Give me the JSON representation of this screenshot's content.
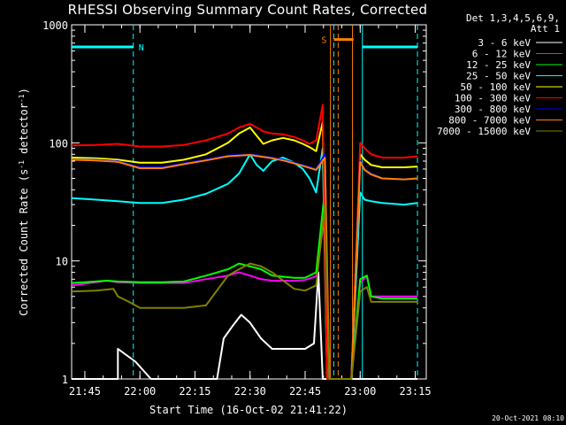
{
  "chart_data": {
    "type": "line",
    "title": "RHESSI Observing Summary Count Rates, Corrected",
    "xlabel": "Start Time (16-Oct-02 21:41:22)",
    "ylabel": "Corrected Count Rate (s",
    "ylabel_sup1": "-1",
    "ylabel_mid": " detector",
    "ylabel_sup2": "-1",
    "ylabel_end": ")",
    "yscale": "log",
    "ylim": [
      1,
      1000
    ],
    "y_ticks": [
      {
        "v": 1,
        "label": "1"
      },
      {
        "v": 10,
        "label": "10"
      },
      {
        "v": 100,
        "label": "100"
      },
      {
        "v": 1000,
        "label": "1000"
      }
    ],
    "xlim": [
      21.69,
      23.3
    ],
    "x_ticks": [
      {
        "v": 21.75,
        "label": "21:45"
      },
      {
        "v": 22.0,
        "label": "22:00"
      },
      {
        "v": 22.25,
        "label": "22:15"
      },
      {
        "v": 22.5,
        "label": "22:30"
      },
      {
        "v": 22.75,
        "label": "22:45"
      },
      {
        "v": 23.0,
        "label": "23:00"
      },
      {
        "v": 23.25,
        "label": "23:15"
      }
    ],
    "legend_header": [
      "Det 1,3,4,5,6,9,",
      "Att 1"
    ],
    "legend_position": "right",
    "series": [
      {
        "name": "3 - 6 keV",
        "color": "#ffffff",
        "x": [
          21.69,
          21.9,
          21.9,
          21.98,
          22.05,
          22.2,
          22.35,
          22.38,
          22.42,
          22.46,
          22.5,
          22.55,
          22.6,
          22.65,
          22.7,
          22.75,
          22.79,
          22.81,
          22.83,
          22.86,
          22.9,
          22.96,
          23.0,
          23.05,
          23.1,
          23.2,
          23.26
        ],
        "y": [
          1,
          1,
          1.8,
          1.4,
          1,
          1,
          1,
          2.2,
          2.8,
          3.5,
          3,
          2.2,
          1.8,
          1.8,
          1.8,
          1.8,
          2,
          8,
          1,
          1,
          1,
          1,
          1,
          1,
          1,
          1,
          1
        ]
      },
      {
        "name": "6 - 12 keV",
        "color": "#ff00ff",
        "x": [
          21.69,
          21.75,
          21.85,
          21.9,
          22.0,
          22.1,
          22.2,
          22.3,
          22.4,
          22.45,
          22.5,
          22.55,
          22.6,
          22.7,
          22.75,
          22.8,
          22.84,
          22.86,
          22.9,
          22.96,
          23.0,
          23.03,
          23.05,
          23.1,
          23.2,
          23.26
        ],
        "y": [
          6.2,
          6.4,
          6.8,
          6.6,
          6.5,
          6.5,
          6.5,
          7,
          7.5,
          8,
          7.5,
          7,
          6.8,
          6.8,
          6.9,
          7.4,
          25,
          1,
          1,
          1,
          6.5,
          7.5,
          5,
          5,
          5,
          5
        ]
      },
      {
        "name": "12 - 25 keV",
        "color": "#00ff00",
        "x": [
          21.69,
          21.75,
          21.85,
          21.9,
          22.0,
          22.1,
          22.2,
          22.3,
          22.4,
          22.45,
          22.5,
          22.55,
          22.6,
          22.7,
          22.75,
          22.8,
          22.84,
          22.86,
          22.9,
          22.96,
          23.0,
          23.03,
          23.05,
          23.1,
          23.2,
          23.26
        ],
        "y": [
          6.5,
          6.6,
          6.8,
          6.7,
          6.6,
          6.6,
          6.7,
          7.5,
          8.5,
          9.5,
          9,
          8.5,
          7.5,
          7.2,
          7.2,
          8,
          40,
          1,
          1,
          1,
          7,
          7.5,
          5,
          4.8,
          4.8,
          4.8
        ]
      },
      {
        "name": "25 - 50 keV",
        "color": "#00ffff",
        "x": [
          21.69,
          21.8,
          21.9,
          22.0,
          22.1,
          22.2,
          22.3,
          22.4,
          22.45,
          22.5,
          22.53,
          22.56,
          22.6,
          22.65,
          22.7,
          22.74,
          22.77,
          22.8,
          22.83,
          22.85,
          22.9,
          22.96,
          23.0,
          23.02,
          23.05,
          23.1,
          23.2,
          23.26
        ],
        "y": [
          34,
          33,
          32,
          31,
          31,
          33,
          37,
          45,
          55,
          80,
          65,
          58,
          70,
          75,
          68,
          60,
          50,
          38,
          90,
          1,
          1,
          1,
          38,
          33,
          32,
          31,
          30,
          31
        ]
      },
      {
        "name": "50 - 100 keV",
        "color": "#ffff00",
        "x": [
          21.69,
          21.8,
          21.9,
          22.0,
          22.1,
          22.2,
          22.3,
          22.4,
          22.45,
          22.5,
          22.53,
          22.56,
          22.6,
          22.65,
          22.7,
          22.74,
          22.77,
          22.8,
          22.83,
          22.85,
          22.9,
          22.96,
          23.0,
          23.02,
          23.05,
          23.1,
          23.2,
          23.26
        ],
        "y": [
          75,
          74,
          72,
          68,
          68,
          72,
          80,
          100,
          120,
          135,
          115,
          98,
          105,
          110,
          105,
          98,
          92,
          85,
          150,
          1,
          1,
          1,
          80,
          72,
          65,
          62,
          62,
          63
        ]
      },
      {
        "name": "100 - 300 keV",
        "color": "#ff0000",
        "x": [
          21.69,
          21.8,
          21.9,
          22.0,
          22.1,
          22.2,
          22.3,
          22.4,
          22.45,
          22.5,
          22.53,
          22.56,
          22.6,
          22.65,
          22.7,
          22.74,
          22.77,
          22.8,
          22.83,
          22.85,
          22.9,
          22.96,
          23.0,
          23.02,
          23.05,
          23.1,
          23.2,
          23.26
        ],
        "y": [
          95,
          96,
          98,
          93,
          93,
          96,
          105,
          120,
          135,
          145,
          135,
          125,
          120,
          118,
          112,
          105,
          98,
          105,
          210,
          1,
          1,
          1,
          100,
          90,
          80,
          75,
          75,
          77
        ]
      },
      {
        "name": "300 - 800 keV",
        "color": "#0000ff",
        "x": [
          21.69,
          21.8,
          21.9,
          22.0,
          22.1,
          22.2,
          22.3,
          22.4,
          22.5,
          22.6,
          22.65,
          22.7,
          22.75,
          22.8,
          22.84,
          22.86,
          22.9,
          22.96,
          23.0,
          23.02,
          23.05,
          23.1,
          23.2,
          23.26
        ],
        "y": [
          72,
          72,
          70,
          62,
          62,
          67,
          72,
          78,
          80,
          75,
          72,
          68,
          64,
          60,
          80,
          1,
          1,
          1,
          70,
          60,
          55,
          50,
          49,
          50
        ]
      },
      {
        "name": "800 - 7000 keV",
        "color": "#ff8000",
        "x": [
          21.69,
          21.8,
          21.9,
          22.0,
          22.1,
          22.2,
          22.3,
          22.4,
          22.5,
          22.6,
          22.65,
          22.7,
          22.75,
          22.8,
          22.84,
          22.86,
          22.9,
          22.96,
          23.0,
          23.02,
          23.05,
          23.1,
          23.2,
          23.26
        ],
        "y": [
          72,
          71,
          69,
          61,
          61,
          66,
          71,
          77,
          79,
          74,
          71,
          67,
          63,
          59,
          75,
          1,
          1,
          1,
          69,
          59,
          54,
          50,
          49,
          50
        ]
      },
      {
        "name": "7000 - 15000 keV",
        "color": "#808000",
        "x": [
          21.69,
          21.8,
          21.88,
          21.9,
          21.95,
          22.0,
          22.1,
          22.2,
          22.3,
          22.4,
          22.45,
          22.5,
          22.55,
          22.6,
          22.7,
          22.75,
          22.8,
          22.84,
          22.86,
          22.9,
          22.96,
          23.0,
          23.03,
          23.05,
          23.1,
          23.2,
          23.26
        ],
        "y": [
          5.5,
          5.6,
          5.8,
          5,
          4.5,
          4,
          4,
          4,
          4.2,
          7.5,
          8.5,
          9.5,
          9,
          8,
          5.8,
          5.6,
          6.2,
          30,
          1,
          1,
          1,
          5.5,
          6,
          4.5,
          4.5,
          4.5,
          4.5
        ]
      }
    ],
    "annotations": [
      {
        "label": "N",
        "x_start": 21.69,
        "x_end": 21.97,
        "y": 650,
        "color": "#00ffff"
      },
      {
        "label": "S",
        "x_start": 22.88,
        "x_end": 22.97,
        "y": 750,
        "color": "#ff8000"
      },
      {
        "label": "",
        "x_start": 23.01,
        "x_end": 23.26,
        "y": 650,
        "color": "#00ffff"
      }
    ],
    "vlines": [
      {
        "x": 21.97,
        "color": "#00ffff",
        "style": "dashed"
      },
      {
        "x": 22.865,
        "color": "#ff8000",
        "style": "solid"
      },
      {
        "x": 22.88,
        "color": "#00ffff",
        "style": "dashed"
      },
      {
        "x": 22.965,
        "color": "#ff8000",
        "style": "solid"
      },
      {
        "x": 22.9,
        "color": "#ff8000",
        "style": "dashed"
      },
      {
        "x": 23.01,
        "color": "#00ffff",
        "style": "solid"
      },
      {
        "x": 23.26,
        "color": "#00ffff",
        "style": "dashed"
      }
    ]
  },
  "footer_timestamp": "20-Oct-2021 08:10"
}
